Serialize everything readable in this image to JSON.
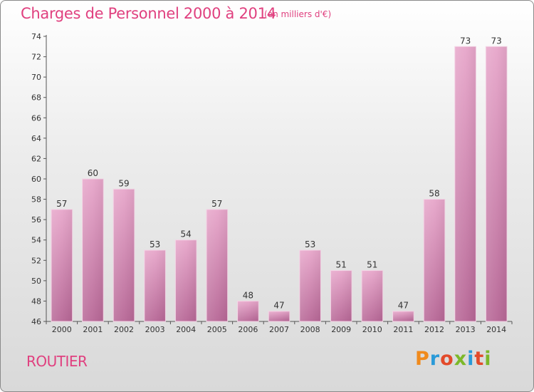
{
  "header": {
    "title": "Charges de Personnel 2000 à 2014",
    "unit": "(en milliers d'€)"
  },
  "footer": {
    "commune": "ROUTIER",
    "brand": "Proxiti",
    "brand_colors": [
      "#f08a1c",
      "#2a9ad8",
      "#e34a2a",
      "#7cb829",
      "#2a9ad8",
      "#e34a2a",
      "#7cb829"
    ]
  },
  "chart_data": {
    "type": "bar",
    "title": "Charges de Personnel 2000 à 2014",
    "subtitle": "(en milliers d'€)",
    "categories": [
      "2000",
      "2001",
      "2002",
      "2003",
      "2004",
      "2005",
      "2006",
      "2007",
      "2008",
      "2009",
      "2010",
      "2011",
      "2012",
      "2013",
      "2014"
    ],
    "values": [
      57,
      60,
      59,
      53,
      54,
      57,
      48,
      47,
      53,
      51,
      51,
      47,
      58,
      73,
      73
    ],
    "xlabel": "",
    "ylabel": "",
    "ylim": [
      46,
      74
    ],
    "yticks": [
      46,
      48,
      50,
      52,
      54,
      56,
      58,
      60,
      62,
      64,
      66,
      68,
      70,
      72,
      74
    ],
    "grid": false,
    "bar_color": "#d77fae",
    "legend": "none"
  }
}
